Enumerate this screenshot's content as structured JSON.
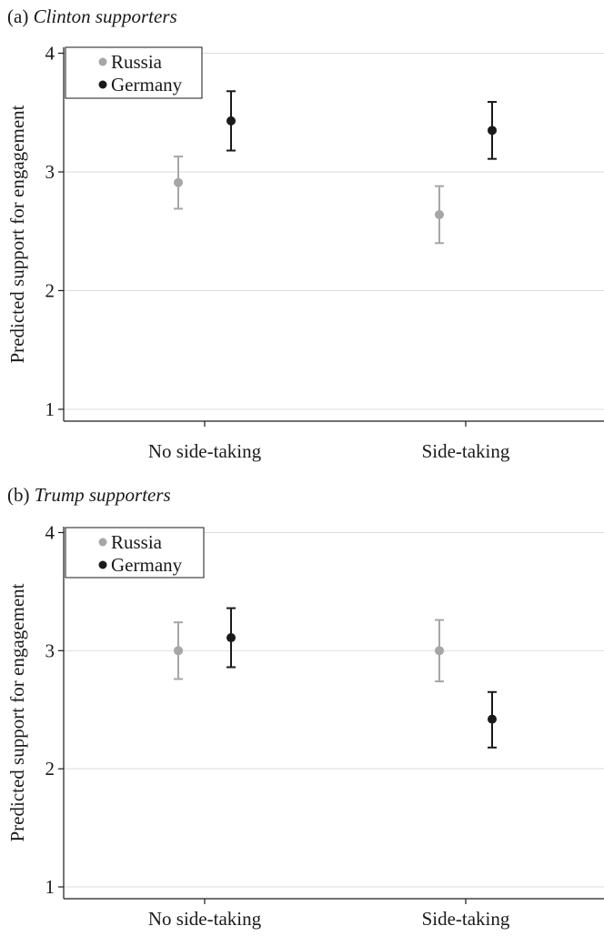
{
  "colors": {
    "russia": "#a6a6a6",
    "germany": "#1a1a1a",
    "grid": "#dedede",
    "axis": "#1a1a1a"
  },
  "chart_data": [
    {
      "type": "scatter",
      "panel_label": "(a)",
      "title": "Clinton supporters",
      "xlabel": "",
      "ylabel": "Predicted support for engagement",
      "categories": [
        "No side-taking",
        "Side-taking"
      ],
      "ylim": [
        0.9,
        4.05
      ],
      "yticks": [
        1,
        2,
        3,
        4
      ],
      "grid": true,
      "legend_position": "top-left",
      "series": [
        {
          "name": "Russia",
          "values": [
            2.91,
            2.64
          ],
          "lower": [
            2.69,
            2.4
          ],
          "upper": [
            3.13,
            2.88
          ]
        },
        {
          "name": "Germany",
          "values": [
            3.43,
            3.35
          ],
          "lower": [
            3.18,
            3.11
          ],
          "upper": [
            3.68,
            3.59
          ]
        }
      ]
    },
    {
      "type": "scatter",
      "panel_label": "(b)",
      "title": "Trump supporters",
      "xlabel": "",
      "ylabel": "Predicted support for engagement",
      "categories": [
        "No side-taking",
        "Side-taking"
      ],
      "ylim": [
        0.9,
        4.05
      ],
      "yticks": [
        1,
        2,
        3,
        4
      ],
      "grid": true,
      "legend_position": "top-left",
      "series": [
        {
          "name": "Russia",
          "values": [
            3.0,
            3.0
          ],
          "lower": [
            2.76,
            2.74
          ],
          "upper": [
            3.24,
            3.26
          ]
        },
        {
          "name": "Germany",
          "values": [
            3.11,
            2.42
          ],
          "lower": [
            2.86,
            2.18
          ],
          "upper": [
            3.36,
            2.65
          ]
        }
      ]
    }
  ]
}
